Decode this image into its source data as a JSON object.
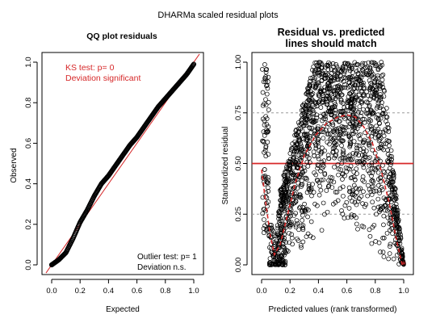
{
  "figure_title": "DHARMa scaled residual plots",
  "colors": {
    "red": "#d62728",
    "black": "#000000",
    "grid": "#9a9a9a"
  },
  "chart_data": [
    {
      "type": "scatter",
      "title": "QQ plot residuals",
      "xlabel": "Expected",
      "ylabel": "Observed",
      "xlim": [
        0,
        1
      ],
      "ylim": [
        0,
        1
      ],
      "x_ticks": [
        0.0,
        0.2,
        0.4,
        0.6,
        0.8,
        1.0
      ],
      "y_ticks": [
        0.0,
        0.2,
        0.4,
        0.6,
        0.8,
        1.0
      ],
      "x_tick_labels": [
        "0.0",
        "0.2",
        "0.4",
        "0.6",
        "0.8",
        "1.0"
      ],
      "y_tick_labels": [
        "0.0",
        "0.2",
        "0.4",
        "0.6",
        "0.8",
        "1.0"
      ],
      "reference_line": "identity (red)",
      "qq_curve": {
        "x": [
          0.0,
          0.05,
          0.1,
          0.15,
          0.2,
          0.25,
          0.3,
          0.35,
          0.4,
          0.45,
          0.5,
          0.55,
          0.6,
          0.65,
          0.7,
          0.75,
          0.8,
          0.85,
          0.9,
          0.95,
          1.0
        ],
        "y": [
          0.0,
          0.025,
          0.06,
          0.13,
          0.21,
          0.27,
          0.34,
          0.4,
          0.44,
          0.49,
          0.54,
          0.59,
          0.63,
          0.68,
          0.73,
          0.78,
          0.82,
          0.86,
          0.9,
          0.94,
          0.99
        ]
      },
      "ks_test": {
        "line1": "KS test: p= 0",
        "line2": "Deviation  significant"
      },
      "outlier_test": {
        "line1": "Outlier test: p= 1",
        "line2": "Deviation  n.s."
      }
    },
    {
      "type": "scatter",
      "title_line1": "Residual vs. predicted",
      "title_line2": "lines should match",
      "xlabel": "Predicted values (rank transformed)",
      "ylabel": "Standardized residual",
      "xlim": [
        0,
        1
      ],
      "ylim": [
        0,
        1
      ],
      "x_ticks": [
        0.0,
        0.2,
        0.4,
        0.6,
        0.8,
        1.0
      ],
      "y_ticks": [
        0.0,
        0.25,
        0.5,
        0.75,
        1.0
      ],
      "x_tick_labels": [
        "0.0",
        "0.2",
        "0.4",
        "0.6",
        "0.8",
        "1.0"
      ],
      "y_tick_labels": [
        "0.00",
        "0.25",
        "0.50",
        "0.75",
        "1.00"
      ],
      "reference_lines": [
        0.25,
        0.5,
        0.75
      ],
      "quantile_curves": [
        {
          "quantile": 0.5,
          "x": [
            0.0,
            0.03,
            0.06,
            0.09,
            0.13,
            0.18,
            0.24,
            0.3,
            0.38,
            0.46,
            0.54,
            0.6,
            0.66,
            0.72,
            0.78,
            0.84,
            0.9,
            0.95,
            0.99
          ],
          "y": [
            0.47,
            0.3,
            0.15,
            0.05,
            0.1,
            0.24,
            0.41,
            0.54,
            0.64,
            0.7,
            0.73,
            0.74,
            0.73,
            0.68,
            0.6,
            0.47,
            0.3,
            0.12,
            0.0
          ]
        }
      ],
      "scatter_cloud": {
        "point_count": 1800,
        "description_points": "points concentrated in an arch (low at x=0.1 and x=1.0, dense near y=1.0 for x in 0.3-0.9), cluster near x=0-0.05 at y 0.15-1.0, cluster near y=0 for x 0.05-0.15"
      }
    }
  ]
}
